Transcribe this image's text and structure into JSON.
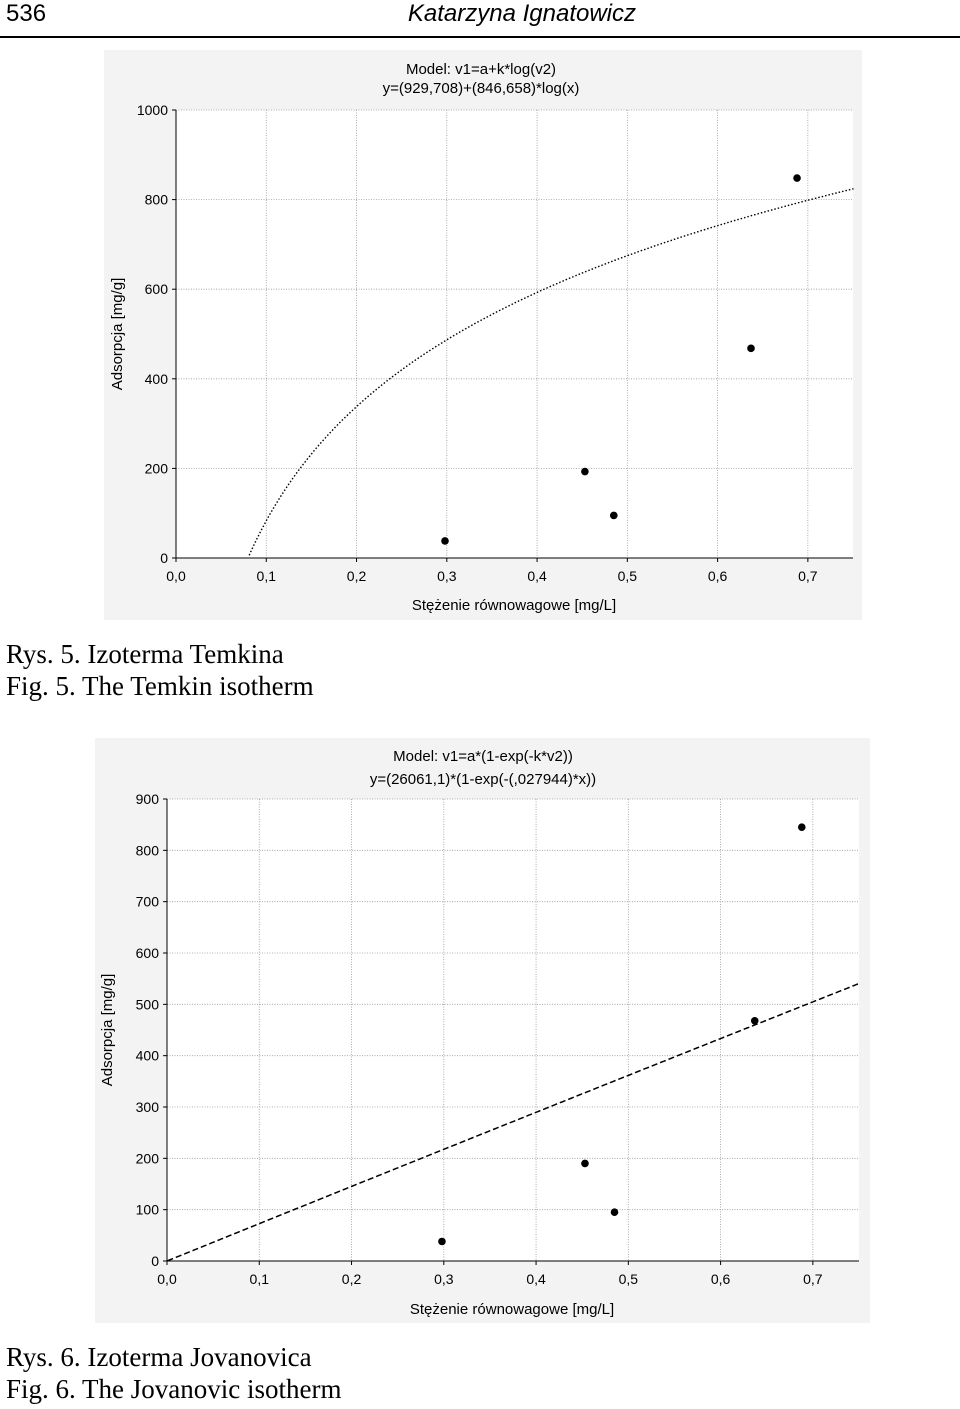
{
  "header": {
    "page_number": "536",
    "author": "Katarzyna Ignatowicz"
  },
  "figures": [
    {
      "caption_pl": "Rys. 5. Izoterma Temkina",
      "caption_en": "Fig. 5. The Temkin isotherm"
    },
    {
      "caption_pl": "Rys. 6. Izoterma Jovanovica",
      "caption_en": "Fig. 6. The Jovanovic isotherm"
    }
  ],
  "chart_data": [
    {
      "type": "scatter",
      "model_line1": "Model: v1=a+k*log(v2)",
      "model_line2": "y=(929,708)+(846,658)*log(x)",
      "xlabel": "Stężenie równowagowe [mg/L]",
      "ylabel": "Adsorpcja [mg/g]",
      "xlim": [
        0,
        0.75
      ],
      "ylim": [
        0,
        1000
      ],
      "x_ticks": [
        0,
        0.1,
        0.2,
        0.3,
        0.4,
        0.5,
        0.6,
        0.7
      ],
      "x_tick_labels": [
        "0,0",
        "0,1",
        "0,2",
        "0,3",
        "0,4",
        "0,5",
        "0,6",
        "0,7"
      ],
      "y_ticks": [
        0,
        200,
        400,
        600,
        800,
        1000
      ],
      "y_tick_labels": [
        "0",
        "200",
        "400",
        "600",
        "800",
        "1000"
      ],
      "grid": true,
      "points": [
        {
          "x": 0.298,
          "y": 38
        },
        {
          "x": 0.453,
          "y": 193
        },
        {
          "x": 0.485,
          "y": 95
        },
        {
          "x": 0.637,
          "y": 468
        },
        {
          "x": 0.688,
          "y": 848
        }
      ],
      "fit": {
        "kind": "log",
        "a": 929.708,
        "k": 846.658,
        "style": "dotted"
      }
    },
    {
      "type": "scatter",
      "model_line1": "Model: v1=a*(1-exp(-k*v2))",
      "model_line2": "y=(26061,1)*(1-exp(-(,027944)*x))",
      "xlabel": "Stężenie równowagowe [mg/L]",
      "ylabel": "Adsorpcja [mg/g]",
      "xlim": [
        0,
        0.75
      ],
      "ylim": [
        0,
        900
      ],
      "x_ticks": [
        0,
        0.1,
        0.2,
        0.3,
        0.4,
        0.5,
        0.6,
        0.7
      ],
      "x_tick_labels": [
        "0,0",
        "0,1",
        "0,2",
        "0,3",
        "0,4",
        "0,5",
        "0,6",
        "0,7"
      ],
      "y_ticks": [
        0,
        100,
        200,
        300,
        400,
        500,
        600,
        700,
        800,
        900
      ],
      "y_tick_labels": [
        "0",
        "100",
        "200",
        "300",
        "400",
        "500",
        "600",
        "700",
        "800",
        "900"
      ],
      "grid": true,
      "points": [
        {
          "x": 0.298,
          "y": 38
        },
        {
          "x": 0.453,
          "y": 190
        },
        {
          "x": 0.485,
          "y": 95
        },
        {
          "x": 0.637,
          "y": 468
        },
        {
          "x": 0.688,
          "y": 845
        }
      ],
      "fit": {
        "kind": "exp",
        "a": 26061.1,
        "k": 0.027944,
        "style": "dashed"
      }
    }
  ]
}
